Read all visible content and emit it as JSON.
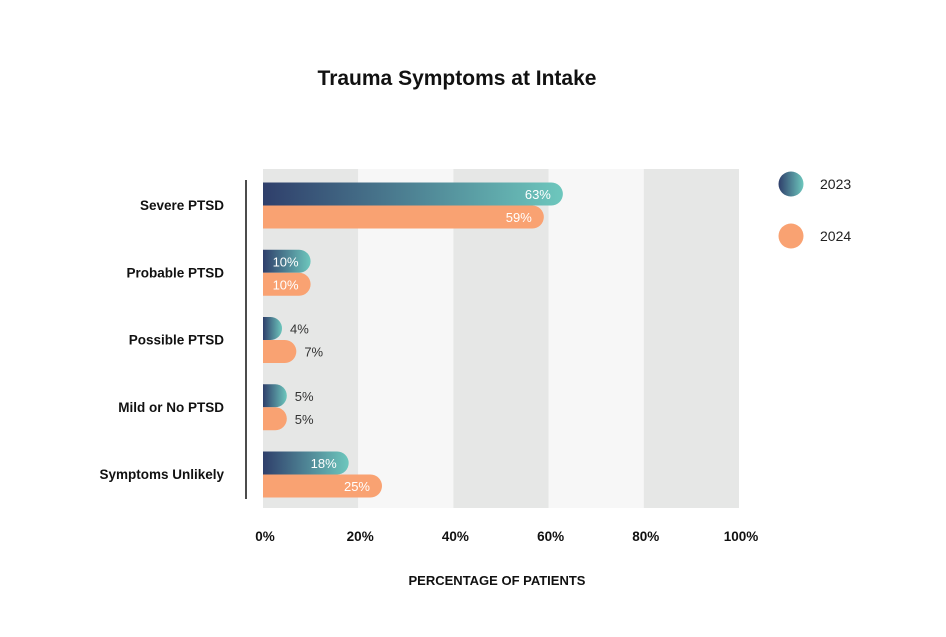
{
  "chart_data": {
    "type": "bar",
    "orientation": "horizontal",
    "title": "Trauma Symptoms at Intake",
    "xlabel": "PERCENTAGE OF PATIENTS",
    "ylabel": "",
    "xlim": [
      0,
      100
    ],
    "x_ticks": [
      0,
      20,
      40,
      60,
      80,
      100
    ],
    "x_tick_labels": [
      "0%",
      "20%",
      "40%",
      "60%",
      "80%",
      "100%"
    ],
    "categories": [
      "Severe PTSD",
      "Probable PTSD",
      "Possible PTSD",
      "Mild or No PTSD",
      "Symptoms Unlikely"
    ],
    "series": [
      {
        "name": "2023",
        "values": [
          63,
          10,
          4,
          5,
          18
        ],
        "labels": [
          "63%",
          "10%",
          "4%",
          "5%",
          "18%"
        ],
        "color_start": "#2f3f6b",
        "color_end": "#6dc7bd"
      },
      {
        "name": "2024",
        "values": [
          59,
          10,
          7,
          5,
          25
        ],
        "labels": [
          "59%",
          "10%",
          "7%",
          "5%",
          "25%"
        ],
        "color": "#f9a272"
      }
    ],
    "legend_position": "top-right",
    "grid": "alternating vertical bands",
    "band_colors": [
      "#e6e7e6",
      "#f7f7f7"
    ]
  }
}
